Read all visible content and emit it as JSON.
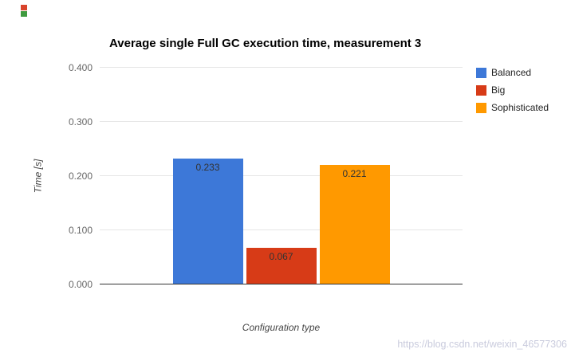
{
  "chart_data": {
    "type": "bar",
    "title": "Average single Full GC execution time, measurement 3",
    "xlabel": "Configuration type",
    "ylabel": "Time [s]",
    "ylim": [
      0,
      0.4
    ],
    "yticks": [
      "0.000",
      "0.100",
      "0.200",
      "0.300",
      "0.400"
    ],
    "grid": true,
    "legend_position": "right",
    "categories": [
      "Balanced",
      "Big",
      "Sophisticated"
    ],
    "series": [
      {
        "name": "Balanced",
        "value": 0.233,
        "label": "0.233",
        "color": "#3d78d8"
      },
      {
        "name": "Big",
        "value": 0.067,
        "label": "0.067",
        "color": "#d73b17"
      },
      {
        "name": "Sophisticated",
        "value": 0.221,
        "label": "0.221",
        "color": "#ff9900"
      }
    ]
  },
  "watermark": "https://blog.csdn.net/weixin_46577306"
}
